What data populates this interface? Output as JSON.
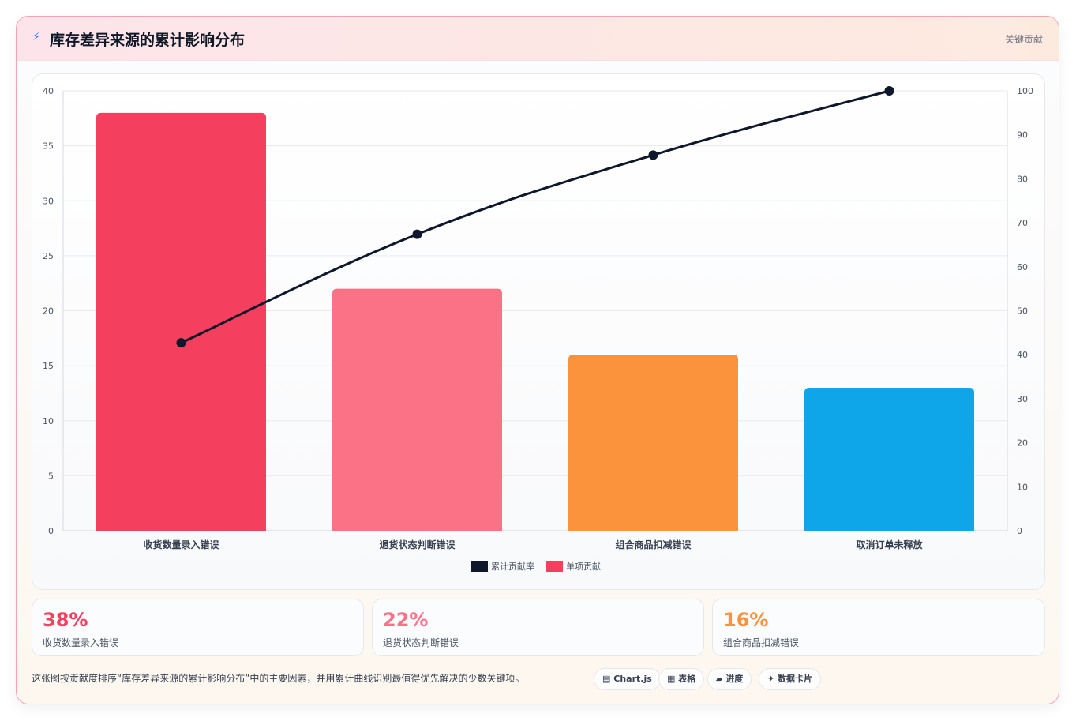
{
  "header": {
    "icon": "bolt-icon",
    "title": "库存差异来源的累计影响分布",
    "right_label": "关键贡献"
  },
  "chart_data": {
    "type": "bar",
    "categories": [
      "收货数量录入错误",
      "退货状态判断错误",
      "组合商品扣减错误",
      "取消订单未释放"
    ],
    "series": [
      {
        "name": "单项贡献",
        "type": "bar",
        "axis": "left",
        "values": [
          38,
          22,
          16,
          13
        ],
        "colors": [
          "#f43f5e",
          "#fb7185",
          "#fb923c",
          "#0ea5e9"
        ]
      },
      {
        "name": "累计贡献率",
        "type": "line",
        "axis": "right",
        "values": [
          42.7,
          67.4,
          85.4,
          100
        ],
        "color": "#0f172a"
      }
    ],
    "ylim_left": [
      0,
      40
    ],
    "yticks_left": [
      0,
      5,
      10,
      15,
      20,
      25,
      30,
      35,
      40
    ],
    "ylim_right": [
      0,
      100
    ],
    "yticks_right": [
      0,
      10,
      20,
      30,
      40,
      50,
      60,
      70,
      80,
      90,
      100
    ],
    "grid": true,
    "legend_position": "bottom",
    "legend": [
      {
        "label": "累计贡献率",
        "color": "#0f172a"
      },
      {
        "label": "单项贡献",
        "color": "#f43f5e"
      }
    ]
  },
  "stats": [
    {
      "value": "38%",
      "label": "收货数量录入错误",
      "color": "#f43f5e"
    },
    {
      "value": "22%",
      "label": "退货状态判断错误",
      "color": "#fb7185"
    },
    {
      "value": "16%",
      "label": "组合商品扣减错误",
      "color": "#fb923c"
    }
  ],
  "footer": {
    "note": "这张图按贡献度排序“库存差异来源的累计影响分布”中的主要因素，并用累计曲线识别最值得优先解决的少数关键项。",
    "chips": [
      {
        "icon": "chart-icon",
        "glyph": "▤",
        "label": "Chart.js"
      },
      {
        "icon": "table-icon",
        "glyph": "▦",
        "label": "表格"
      },
      {
        "icon": "progress-icon",
        "glyph": "▰",
        "label": "进度"
      },
      {
        "icon": "data-card-icon",
        "glyph": "✦",
        "label": "数据卡片"
      }
    ]
  }
}
